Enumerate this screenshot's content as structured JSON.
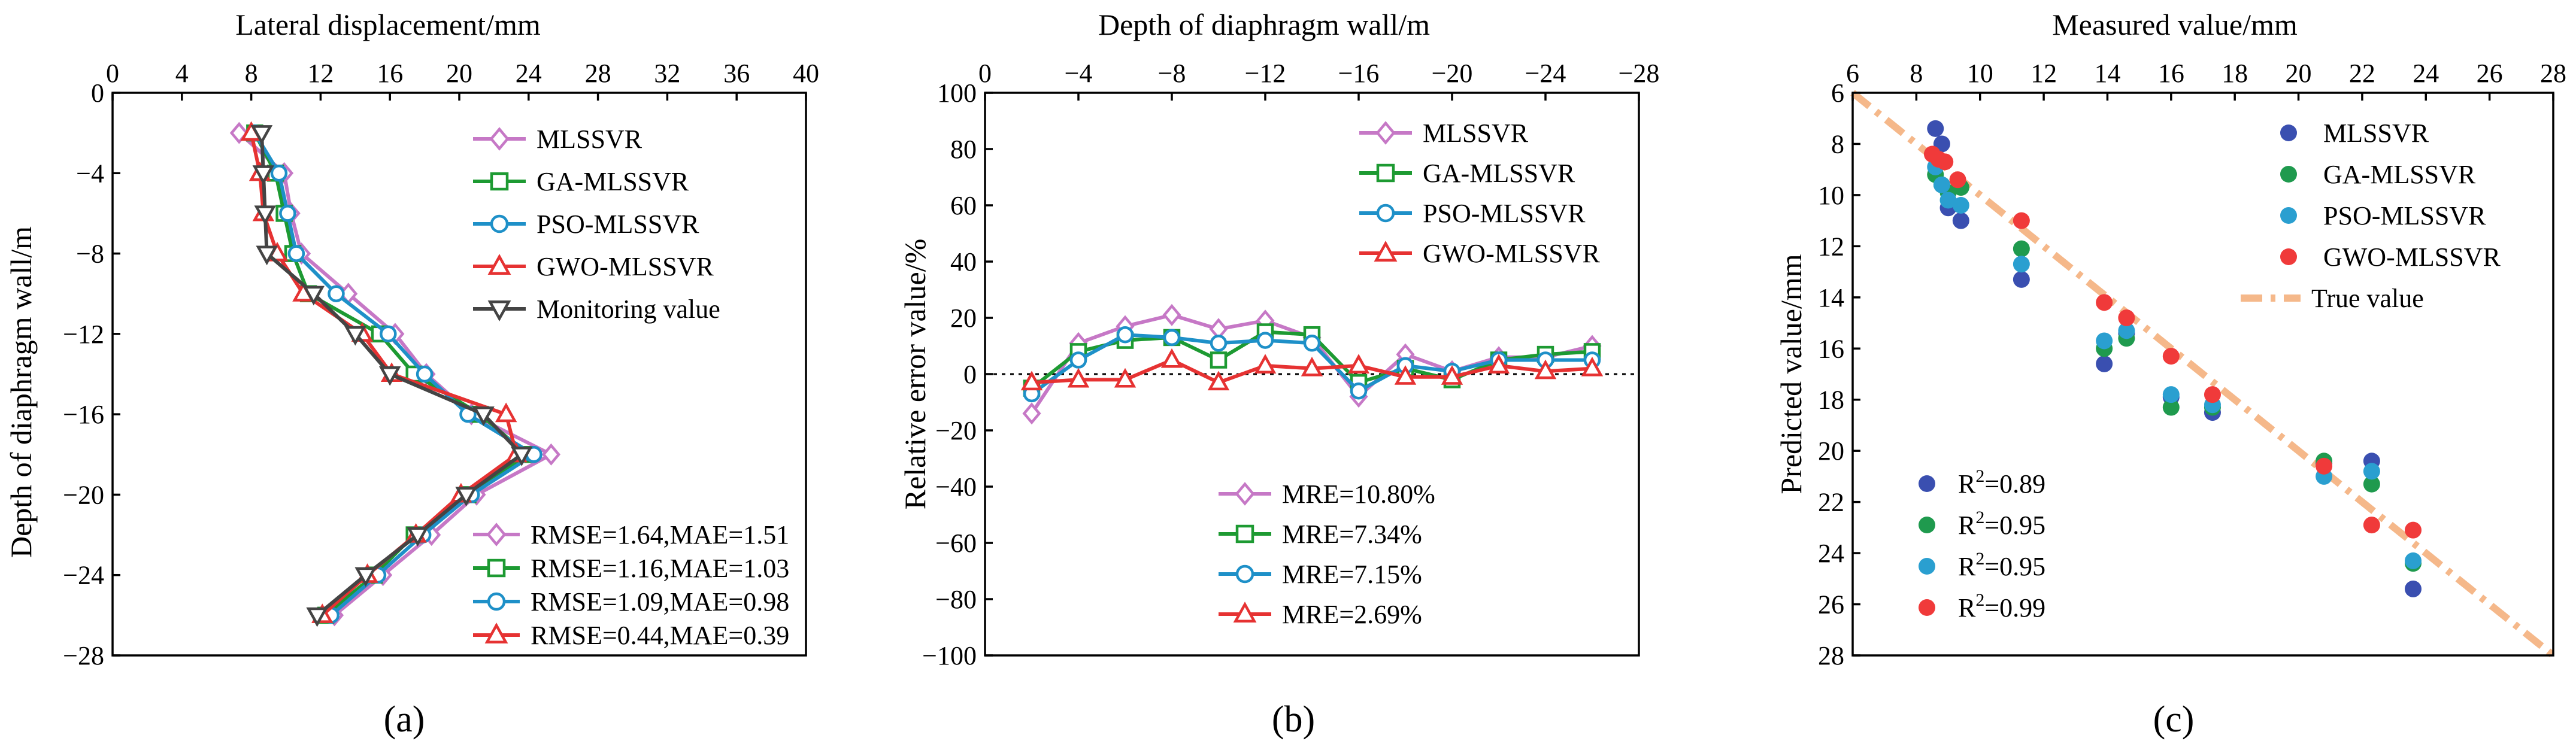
{
  "colors": {
    "MLSSVR": "#c678c6",
    "GA-MLSSVR": "#1d9a32",
    "PSO-MLSSVR": "#1e90c8",
    "GWO-MLSSVR": "#e63232",
    "Monitoring value": "#444444",
    "True value": "#f5b88a",
    "scatter": {
      "MLSSVR": "#3a4fb0",
      "GA-MLSSVR": "#1f9a4e",
      "PSO-MLSSVR": "#2a9fd0",
      "GWO-MLSSVR": "#f03a3a"
    }
  },
  "panel_labels": [
    "(a)",
    "(b)",
    "(c)"
  ],
  "chart_data": [
    {
      "id": "a",
      "type": "line",
      "title": "Lateral displacement/mm",
      "xlabel": "Lateral displacement/mm",
      "ylabel": "Depth of diaphragm wall/m",
      "xlim": [
        0,
        40
      ],
      "ylim": [
        -28,
        0
      ],
      "xticks": [
        0,
        4,
        8,
        12,
        16,
        20,
        24,
        28,
        32,
        36,
        40
      ],
      "yticks": [
        0,
        -4,
        -8,
        -12,
        -16,
        -20,
        -24,
        -28
      ],
      "ytick_labels": [
        "0",
        "−4",
        "−8",
        "−12",
        "−16",
        "−20",
        "−24",
        "−28"
      ],
      "depth": [
        -2,
        -4,
        -6,
        -8,
        -10,
        -12,
        -14,
        -16,
        -18,
        -20,
        -22,
        -24,
        -26
      ],
      "series": [
        {
          "name": "MLSSVR",
          "marker": "diamond",
          "values": [
            7.3,
            9.9,
            10.3,
            10.9,
            13.6,
            16.3,
            18.1,
            20.7,
            25.3,
            21.0,
            18.4,
            15.6,
            12.8
          ]
        },
        {
          "name": "GA-MLSSVR",
          "marker": "square",
          "values": [
            8.2,
            9.4,
            9.9,
            10.4,
            11.3,
            15.4,
            17.4,
            21.2,
            23.9,
            20.5,
            17.4,
            15.1,
            12.3
          ]
        },
        {
          "name": "PSO-MLSSVR",
          "marker": "circle",
          "values": [
            8.2,
            9.6,
            10.1,
            10.6,
            12.9,
            15.9,
            18.0,
            20.5,
            24.3,
            20.7,
            17.9,
            15.3,
            12.6
          ]
        },
        {
          "name": "GWO-MLSSVR",
          "marker": "triangle-up",
          "values": [
            8.0,
            8.5,
            8.7,
            9.5,
            11.0,
            14.4,
            16.1,
            22.7,
            23.3,
            20.1,
            17.5,
            14.7,
            12.1
          ]
        },
        {
          "name": "Monitoring value",
          "marker": "triangle-down",
          "values": [
            8.6,
            8.7,
            8.8,
            8.9,
            11.6,
            14.0,
            16.0,
            21.4,
            23.6,
            20.4,
            17.6,
            14.6,
            11.8
          ]
        }
      ],
      "legend_top": [
        "MLSSVR",
        "GA-MLSSVR",
        "PSO-MLSSVR",
        "GWO-MLSSVR",
        "Monitoring value"
      ],
      "legend_bottom": [
        {
          "series": "MLSSVR",
          "text": "RMSE=1.64,MAE=1.51"
        },
        {
          "series": "GA-MLSSVR",
          "text": "RMSE=1.16,MAE=1.03"
        },
        {
          "series": "PSO-MLSSVR",
          "text": "RMSE=1.09,MAE=0.98"
        },
        {
          "series": "GWO-MLSSVR",
          "text": "RMSE=0.44,MAE=0.39"
        }
      ]
    },
    {
      "id": "b",
      "type": "line",
      "title": "Depth of diaphragm wall/m",
      "xlabel": "Depth of diaphragm wall/m",
      "ylabel": "Relative error value/%",
      "xlim": [
        0,
        -28
      ],
      "ylim": [
        -100,
        100
      ],
      "xticks": [
        0,
        -4,
        -8,
        -12,
        -16,
        -20,
        -24,
        -28
      ],
      "xtick_labels": [
        "0",
        "−4",
        "−8",
        "−12",
        "−16",
        "−20",
        "−24",
        "−28"
      ],
      "yticks": [
        100,
        80,
        60,
        40,
        20,
        0,
        -20,
        -40,
        -60,
        -80,
        -100
      ],
      "ytick_labels": [
        "100",
        "80",
        "60",
        "40",
        "20",
        "0",
        "−20",
        "−40",
        "−60",
        "−80",
        "−100"
      ],
      "reference_line": 0,
      "x": [
        -2,
        -4,
        -6,
        -8,
        -10,
        -12,
        -14,
        -16,
        -18,
        -20,
        -22,
        -24,
        -26
      ],
      "series": [
        {
          "name": "MLSSVR",
          "marker": "diamond",
          "values": [
            -14,
            11,
            17,
            21,
            16,
            19,
            13,
            -8,
            7,
            1,
            6,
            6,
            10
          ]
        },
        {
          "name": "GA-MLSSVR",
          "marker": "square",
          "values": [
            -5,
            8,
            12,
            13,
            5,
            15,
            14,
            -3,
            2,
            -2,
            5,
            7,
            8
          ]
        },
        {
          "name": "PSO-MLSSVR",
          "marker": "circle",
          "values": [
            -7,
            5,
            14,
            13,
            11,
            12,
            11,
            -6,
            3,
            1,
            5,
            5,
            5
          ]
        },
        {
          "name": "GWO-MLSSVR",
          "marker": "triangle-up",
          "values": [
            -3,
            -2,
            -2,
            5,
            -3,
            3,
            2,
            3,
            -1,
            -1,
            3,
            1,
            2
          ]
        }
      ],
      "legend_top": [
        "MLSSVR",
        "GA-MLSSVR",
        "PSO-MLSSVR",
        "GWO-MLSSVR"
      ],
      "legend_bottom": [
        {
          "series": "MLSSVR",
          "text": "MRE=10.80%"
        },
        {
          "series": "GA-MLSSVR",
          "text": "MRE=7.34%"
        },
        {
          "series": "PSO-MLSSVR",
          "text": "MRE=7.15%"
        },
        {
          "series": "GWO-MLSSVR",
          "text": "MRE=2.69%"
        }
      ]
    },
    {
      "id": "c",
      "type": "scatter",
      "title": "Measured value/mm",
      "xlabel": "Measured value/mm",
      "ylabel": "Predicted value/mm",
      "xlim": [
        6,
        28
      ],
      "ylim": [
        28,
        6
      ],
      "xticks": [
        6,
        8,
        10,
        12,
        14,
        16,
        18,
        20,
        22,
        24,
        26,
        28
      ],
      "yticks": [
        6,
        8,
        10,
        12,
        14,
        16,
        18,
        20,
        22,
        24,
        26,
        28
      ],
      "true_line": [
        [
          6,
          6
        ],
        [
          28,
          28
        ]
      ],
      "series": [
        {
          "name": "MLSSVR",
          "points": [
            [
              8.6,
              7.4
            ],
            [
              8.8,
              8.0
            ],
            [
              9.0,
              10.5
            ],
            [
              9.4,
              11.0
            ],
            [
              11.3,
              13.3
            ],
            [
              13.9,
              16.6
            ],
            [
              14.6,
              15.4
            ],
            [
              16.0,
              17.9
            ],
            [
              17.3,
              18.5
            ],
            [
              20.8,
              20.5
            ],
            [
              22.3,
              20.4
            ],
            [
              23.6,
              25.4
            ]
          ],
          "r2": "0.89"
        },
        {
          "name": "GA-MLSSVR",
          "points": [
            [
              8.6,
              9.2
            ],
            [
              8.8,
              9.6
            ],
            [
              9.0,
              9.9
            ],
            [
              9.4,
              9.7
            ],
            [
              11.3,
              12.1
            ],
            [
              13.9,
              16.0
            ],
            [
              14.6,
              15.6
            ],
            [
              16.0,
              18.3
            ],
            [
              17.3,
              18.3
            ],
            [
              20.8,
              20.4
            ],
            [
              22.3,
              21.3
            ],
            [
              23.6,
              24.4
            ]
          ],
          "r2": "0.95"
        },
        {
          "name": "PSO-MLSSVR",
          "points": [
            [
              8.6,
              8.9
            ],
            [
              8.8,
              9.6
            ],
            [
              9.0,
              10.2
            ],
            [
              9.4,
              10.4
            ],
            [
              11.3,
              12.7
            ],
            [
              13.9,
              15.7
            ],
            [
              14.6,
              15.3
            ],
            [
              16.0,
              17.8
            ],
            [
              17.3,
              18.2
            ],
            [
              20.8,
              21.0
            ],
            [
              22.3,
              20.8
            ],
            [
              23.6,
              24.3
            ]
          ],
          "r2": "0.95"
        },
        {
          "name": "GWO-MLSSVR",
          "points": [
            [
              8.5,
              8.4
            ],
            [
              8.7,
              8.6
            ],
            [
              8.9,
              8.7
            ],
            [
              9.3,
              9.4
            ],
            [
              11.3,
              11.0
            ],
            [
              13.9,
              14.2
            ],
            [
              14.6,
              14.8
            ],
            [
              16.0,
              16.3
            ],
            [
              17.3,
              17.8
            ],
            [
              20.8,
              20.6
            ],
            [
              22.3,
              22.9
            ],
            [
              23.6,
              23.1
            ]
          ],
          "r2": "0.99"
        }
      ],
      "legend_top": [
        "MLSSVR",
        "GA-MLSSVR",
        "PSO-MLSSVR",
        "GWO-MLSSVR",
        "True value"
      ],
      "r2_label": "R",
      "r2_sup": "2"
    }
  ]
}
